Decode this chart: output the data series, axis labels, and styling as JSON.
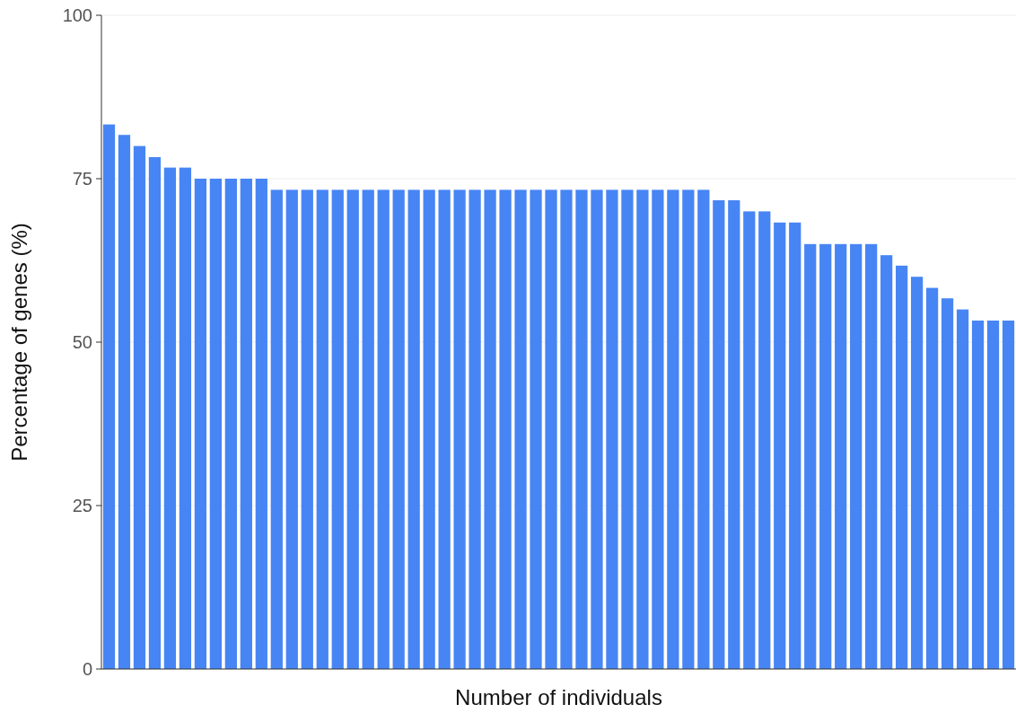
{
  "chart_data": {
    "type": "bar",
    "xlabel": "Number of individuals",
    "ylabel": "Percentage of genes (%)",
    "categories": [
      null,
      null,
      null,
      null,
      null,
      null,
      null,
      null,
      null,
      null,
      null,
      null,
      null,
      null,
      null,
      null,
      null,
      null,
      null,
      null,
      null,
      null,
      null,
      null,
      null,
      null,
      null,
      null,
      null,
      null,
      null,
      null,
      null,
      null,
      null,
      null,
      null,
      null,
      null,
      null,
      null,
      null,
      null,
      null,
      null,
      null,
      null,
      null,
      null,
      null,
      null,
      null,
      null,
      null,
      null,
      null,
      null,
      null,
      null,
      null
    ],
    "values": [
      83.3,
      81.7,
      80,
      78.3,
      76.7,
      76.7,
      75,
      75,
      75,
      75,
      75,
      73.3,
      73.3,
      73.3,
      73.3,
      73.3,
      73.3,
      73.3,
      73.3,
      73.3,
      73.3,
      73.3,
      73.3,
      73.3,
      73.3,
      73.3,
      73.3,
      73.3,
      73.3,
      73.3,
      73.3,
      73.3,
      73.3,
      73.3,
      73.3,
      73.3,
      73.3,
      73.3,
      73.3,
      73.3,
      71.7,
      71.7,
      70,
      70,
      68.3,
      68.3,
      65,
      65,
      65,
      65,
      65,
      63.3,
      61.7,
      60,
      58.3,
      56.7,
      55,
      53.3,
      53.3,
      53.3
    ],
    "color": "#4785f4",
    "ylim": [
      0,
      100
    ],
    "yticks": [
      0,
      25,
      50,
      75,
      100
    ],
    "grid": "y"
  }
}
